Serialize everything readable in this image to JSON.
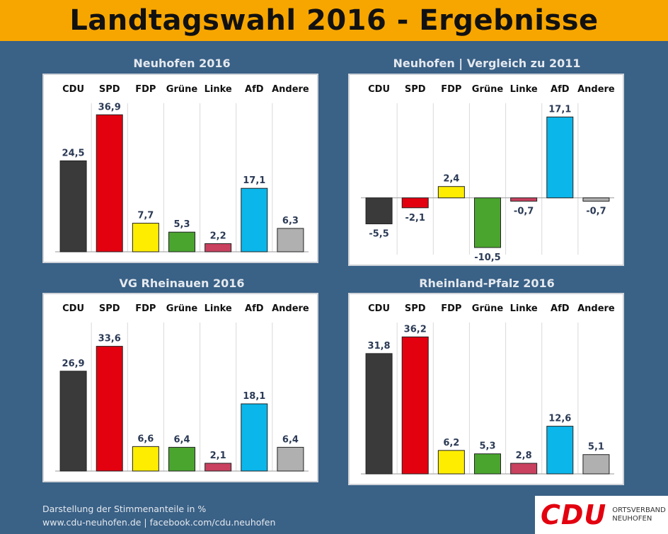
{
  "header": {
    "title": "Landtagswahl 2016 - Ergebnisse"
  },
  "colors": {
    "CDU": "#3a3a3a",
    "SPD": "#e3000f",
    "FDP": "#ffed00",
    "Grüne": "#4aa52e",
    "Linke": "#c9415f",
    "AfD": "#0ab6ea",
    "Andere": "#b0b0b0",
    "header": "#f7a600",
    "background": "#3a6186"
  },
  "chart_data": [
    {
      "type": "bar",
      "title": "Neuhofen 2016",
      "categories": [
        "CDU",
        "SPD",
        "FDP",
        "Grüne",
        "Linke",
        "AfD",
        "Andere"
      ],
      "values": [
        24.5,
        36.9,
        7.7,
        5.3,
        2.2,
        17.1,
        6.3
      ],
      "labels": [
        "24,5",
        "36,9",
        "7,7",
        "5,3",
        "2,2",
        "17,1",
        "6,3"
      ],
      "ylim": [
        0,
        40
      ],
      "grid": false,
      "legend": "category labels on top"
    },
    {
      "type": "bar",
      "title": "Neuhofen | Vergleich zu 2011",
      "categories": [
        "CDU",
        "SPD",
        "FDP",
        "Grüne",
        "Linke",
        "AfD",
        "Andere"
      ],
      "values": [
        -5.5,
        -2.1,
        2.4,
        -10.5,
        -0.7,
        17.1,
        -0.7
      ],
      "labels": [
        "-5,5",
        "-2,1",
        "2,4",
        "-10,5",
        "-0,7",
        "17,1",
        "-0,7"
      ],
      "ylim": [
        -12,
        20
      ],
      "grid": false,
      "legend": "category labels on top"
    },
    {
      "type": "bar",
      "title": "VG Rheinauen 2016",
      "categories": [
        "CDU",
        "SPD",
        "FDP",
        "Grüne",
        "Linke",
        "AfD",
        "Andere"
      ],
      "values": [
        26.9,
        33.6,
        6.6,
        6.4,
        2.1,
        18.1,
        6.4
      ],
      "labels": [
        "26,9",
        "33,6",
        "6,6",
        "6,4",
        "2,1",
        "18,1",
        "6,4"
      ],
      "ylim": [
        0,
        40
      ],
      "grid": false,
      "legend": "category labels on top"
    },
    {
      "type": "bar",
      "title": "Rheinland-Pfalz 2016",
      "categories": [
        "CDU",
        "SPD",
        "FDP",
        "Grüne",
        "Linke",
        "AfD",
        "Andere"
      ],
      "values": [
        31.8,
        36.2,
        6.2,
        5.3,
        2.8,
        12.6,
        5.1
      ],
      "labels": [
        "31,8",
        "36,2",
        "6,2",
        "5,3",
        "2,8",
        "12,6",
        "5,1"
      ],
      "ylim": [
        0,
        40
      ],
      "grid": false,
      "legend": "category labels on top"
    }
  ],
  "footer": {
    "line1": "Darstellung der Stimmenanteile in %",
    "line2": "www.cdu-neuhofen.de | facebook.com/cdu.neuhofen"
  },
  "logo": {
    "word": "CDU",
    "line1": "ORTSVERBAND",
    "line2": "NEUHOFEN"
  }
}
